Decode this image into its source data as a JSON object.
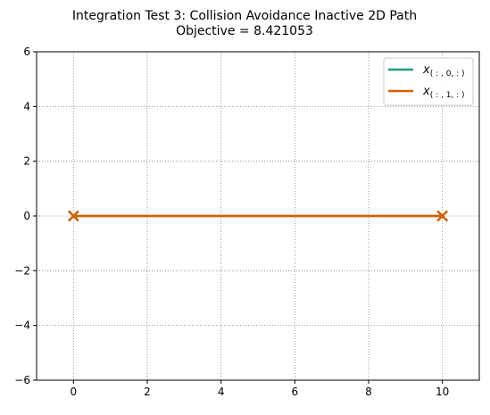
{
  "chart_data": {
    "type": "line",
    "title_line1": "Integration Test 3: Collision Avoidance Inactive 2D Path",
    "title_line2": "Objective = 8.421053",
    "xlabel": "",
    "ylabel": "",
    "xlim": [
      -1,
      11
    ],
    "ylim": [
      -6,
      6
    ],
    "x_ticks": [
      0,
      2,
      4,
      6,
      8,
      10
    ],
    "y_ticks": [
      -6,
      -4,
      -2,
      0,
      2,
      4,
      6
    ],
    "x_tick_labels": [
      "0",
      "2",
      "4",
      "6",
      "8",
      "10"
    ],
    "y_tick_labels": [
      "−6",
      "−4",
      "−2",
      "0",
      "2",
      "4",
      "6"
    ],
    "grid": true,
    "legend_position": "top-right",
    "series": [
      {
        "name": "x(:, 0, :)",
        "legend_base": "x",
        "legend_sub": "( : , 0, : )",
        "color": "#1b9e77",
        "x": [
          0,
          10
        ],
        "y": [
          0,
          0
        ],
        "endpoints": [
          [
            0,
            0
          ],
          [
            10,
            0
          ]
        ]
      },
      {
        "name": "x(:, 1, :)",
        "legend_base": "x",
        "legend_sub": "( : , 1, : )",
        "color": "#d95f02",
        "x": [
          0,
          10
        ],
        "y": [
          0,
          0
        ],
        "endpoints": [
          [
            0,
            0
          ],
          [
            10,
            0
          ]
        ]
      }
    ]
  }
}
